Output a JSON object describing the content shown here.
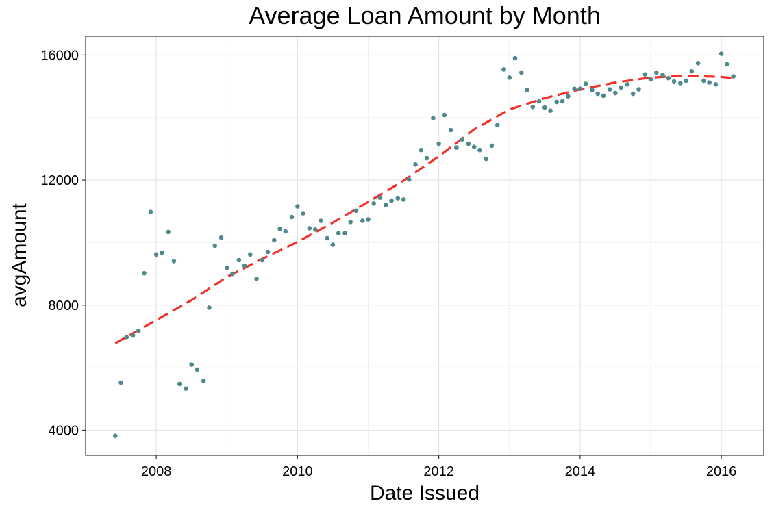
{
  "chart_data": {
    "type": "scatter",
    "title": "Average Loan Amount by Month",
    "xlabel": "Date Issued",
    "ylabel": "avgAmount",
    "xlim": [
      2007.0,
      2016.6
    ],
    "ylim": [
      3200,
      16600
    ],
    "x_ticks": [
      2008,
      2010,
      2012,
      2014,
      2016
    ],
    "x_tick_labels": [
      "2008",
      "2010",
      "2012",
      "2014",
      "2016"
    ],
    "y_ticks": [
      4000,
      8000,
      12000,
      16000
    ],
    "y_tick_labels": [
      "4000",
      "8000",
      "12000",
      "16000"
    ],
    "grid": true,
    "point_color": "#4E8A8D",
    "trend_color": "#F0322A",
    "series": [
      {
        "type": "points",
        "points": [
          [
            2007.42,
            3820
          ],
          [
            2007.5,
            5520
          ],
          [
            2007.58,
            6980
          ],
          [
            2007.67,
            7030
          ],
          [
            2007.75,
            7180
          ],
          [
            2007.83,
            9020
          ],
          [
            2007.92,
            10980
          ],
          [
            2008.0,
            9620
          ],
          [
            2008.08,
            9680
          ],
          [
            2008.17,
            10340
          ],
          [
            2008.25,
            9410
          ],
          [
            2008.33,
            5480
          ],
          [
            2008.42,
            5330
          ],
          [
            2008.5,
            6100
          ],
          [
            2008.58,
            5940
          ],
          [
            2008.67,
            5580
          ],
          [
            2008.75,
            7920
          ],
          [
            2008.83,
            9900
          ],
          [
            2008.92,
            10160
          ],
          [
            2009.0,
            9200
          ],
          [
            2009.08,
            9000
          ],
          [
            2009.17,
            9440
          ],
          [
            2009.25,
            9260
          ],
          [
            2009.33,
            9620
          ],
          [
            2009.42,
            8840
          ],
          [
            2009.5,
            9440
          ],
          [
            2009.58,
            9700
          ],
          [
            2009.67,
            10080
          ],
          [
            2009.75,
            10440
          ],
          [
            2009.83,
            10360
          ],
          [
            2009.92,
            10820
          ],
          [
            2010.0,
            11160
          ],
          [
            2010.08,
            10940
          ],
          [
            2010.17,
            10460
          ],
          [
            2010.25,
            10420
          ],
          [
            2010.33,
            10700
          ],
          [
            2010.42,
            10140
          ],
          [
            2010.5,
            9930
          ],
          [
            2010.58,
            10300
          ],
          [
            2010.67,
            10300
          ],
          [
            2010.75,
            10660
          ],
          [
            2010.83,
            11020
          ],
          [
            2010.92,
            10700
          ],
          [
            2011.0,
            10740
          ],
          [
            2011.08,
            11250
          ],
          [
            2011.17,
            11440
          ],
          [
            2011.25,
            11200
          ],
          [
            2011.33,
            11340
          ],
          [
            2011.42,
            11420
          ],
          [
            2011.5,
            11380
          ],
          [
            2011.58,
            12020
          ],
          [
            2011.67,
            12500
          ],
          [
            2011.75,
            12960
          ],
          [
            2011.83,
            12700
          ],
          [
            2011.92,
            13980
          ],
          [
            2012.0,
            13160
          ],
          [
            2012.08,
            14080
          ],
          [
            2012.17,
            13600
          ],
          [
            2012.25,
            13040
          ],
          [
            2012.33,
            13300
          ],
          [
            2012.42,
            13160
          ],
          [
            2012.5,
            13060
          ],
          [
            2012.58,
            12960
          ],
          [
            2012.67,
            12680
          ],
          [
            2012.75,
            13100
          ],
          [
            2012.83,
            13760
          ],
          [
            2012.92,
            15540
          ],
          [
            2013.0,
            15280
          ],
          [
            2013.08,
            15900
          ],
          [
            2013.17,
            15440
          ],
          [
            2013.25,
            14880
          ],
          [
            2013.33,
            14340
          ],
          [
            2013.42,
            14520
          ],
          [
            2013.5,
            14320
          ],
          [
            2013.58,
            14220
          ],
          [
            2013.67,
            14500
          ],
          [
            2013.75,
            14520
          ],
          [
            2013.83,
            14680
          ],
          [
            2013.92,
            14920
          ],
          [
            2014.0,
            14920
          ],
          [
            2014.08,
            15080
          ],
          [
            2014.17,
            14880
          ],
          [
            2014.25,
            14760
          ],
          [
            2014.33,
            14700
          ],
          [
            2014.42,
            14900
          ],
          [
            2014.5,
            14780
          ],
          [
            2014.58,
            14960
          ],
          [
            2014.67,
            15060
          ],
          [
            2014.75,
            14760
          ],
          [
            2014.83,
            14900
          ],
          [
            2014.92,
            15380
          ],
          [
            2015.0,
            15220
          ],
          [
            2015.08,
            15440
          ],
          [
            2015.17,
            15360
          ],
          [
            2015.25,
            15260
          ],
          [
            2015.33,
            15160
          ],
          [
            2015.42,
            15100
          ],
          [
            2015.5,
            15180
          ],
          [
            2015.58,
            15480
          ],
          [
            2015.67,
            15740
          ],
          [
            2015.75,
            15180
          ],
          [
            2015.83,
            15120
          ],
          [
            2015.92,
            15060
          ],
          [
            2016.0,
            16040
          ],
          [
            2016.08,
            15700
          ],
          [
            2016.17,
            15320
          ]
        ]
      },
      {
        "type": "trend",
        "style": "dashed",
        "points": [
          [
            2007.42,
            6780
          ],
          [
            2008.0,
            7520
          ],
          [
            2008.5,
            8160
          ],
          [
            2009.0,
            8900
          ],
          [
            2009.5,
            9480
          ],
          [
            2010.0,
            10020
          ],
          [
            2010.5,
            10640
          ],
          [
            2011.0,
            11300
          ],
          [
            2011.5,
            11980
          ],
          [
            2012.0,
            12760
          ],
          [
            2012.5,
            13620
          ],
          [
            2013.0,
            14260
          ],
          [
            2013.5,
            14620
          ],
          [
            2014.0,
            14900
          ],
          [
            2014.5,
            15120
          ],
          [
            2015.0,
            15280
          ],
          [
            2015.5,
            15340
          ],
          [
            2016.0,
            15300
          ],
          [
            2016.17,
            15260
          ]
        ]
      }
    ]
  }
}
